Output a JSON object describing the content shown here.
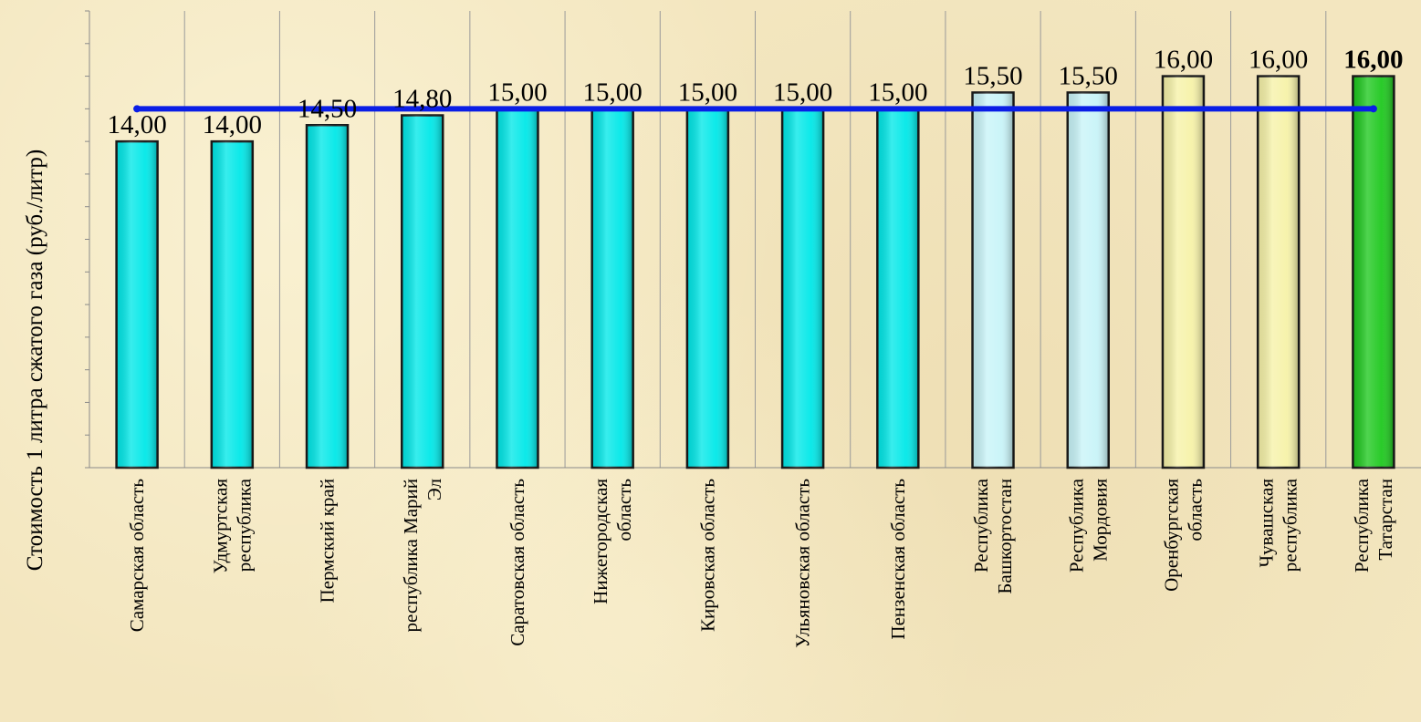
{
  "chart_data": {
    "type": "bar",
    "ylabel": "Стоимость 1 литра сжатого газа  (руб./литр)",
    "xlabel": "",
    "ylim": [
      4,
      18
    ],
    "y_ticks_step": 1,
    "grid": {
      "vertical": true,
      "horizontal": false
    },
    "categories": [
      [
        "Самарская область"
      ],
      [
        "Удмуртская",
        "республика"
      ],
      [
        "Пермский край"
      ],
      [
        "республика Марий",
        "Эл"
      ],
      [
        "Саратовская область"
      ],
      [
        "Нижегородская",
        "область"
      ],
      [
        "Кировская область"
      ],
      [
        "Ульяновская область"
      ],
      [
        "Пензенская область"
      ],
      [
        "Республика",
        "Башкортостан"
      ],
      [
        "Республика",
        "Мордовия"
      ],
      [
        "Оренбургская",
        "область"
      ],
      [
        "Чувашская",
        "республика"
      ],
      [
        "Республика",
        "Татарстан"
      ]
    ],
    "values": [
      14.0,
      14.0,
      14.5,
      14.8,
      15.0,
      15.0,
      15.0,
      15.0,
      15.0,
      15.5,
      15.5,
      16.0,
      16.0,
      16.0
    ],
    "value_labels": [
      "14,00",
      "14,00",
      "14,50",
      "14,80",
      "15,00",
      "15,00",
      "15,00",
      "15,00",
      "15,00",
      "15,50",
      "15,50",
      "16,00",
      "16,00",
      "16,00"
    ],
    "bold_labels": [
      13
    ],
    "bar_colors": [
      "#00e8e8",
      "#00e8e8",
      "#00e8e8",
      "#00e8e8",
      "#00e8e8",
      "#00e8e8",
      "#00e8e8",
      "#00e8e8",
      "#00e8e8",
      "#c8f4f8",
      "#c8f4f8",
      "#f6f2a8",
      "#f6f2a8",
      "#1ec81e"
    ],
    "reference_line": {
      "value": 15.0,
      "color": "#0a1ee6"
    }
  }
}
